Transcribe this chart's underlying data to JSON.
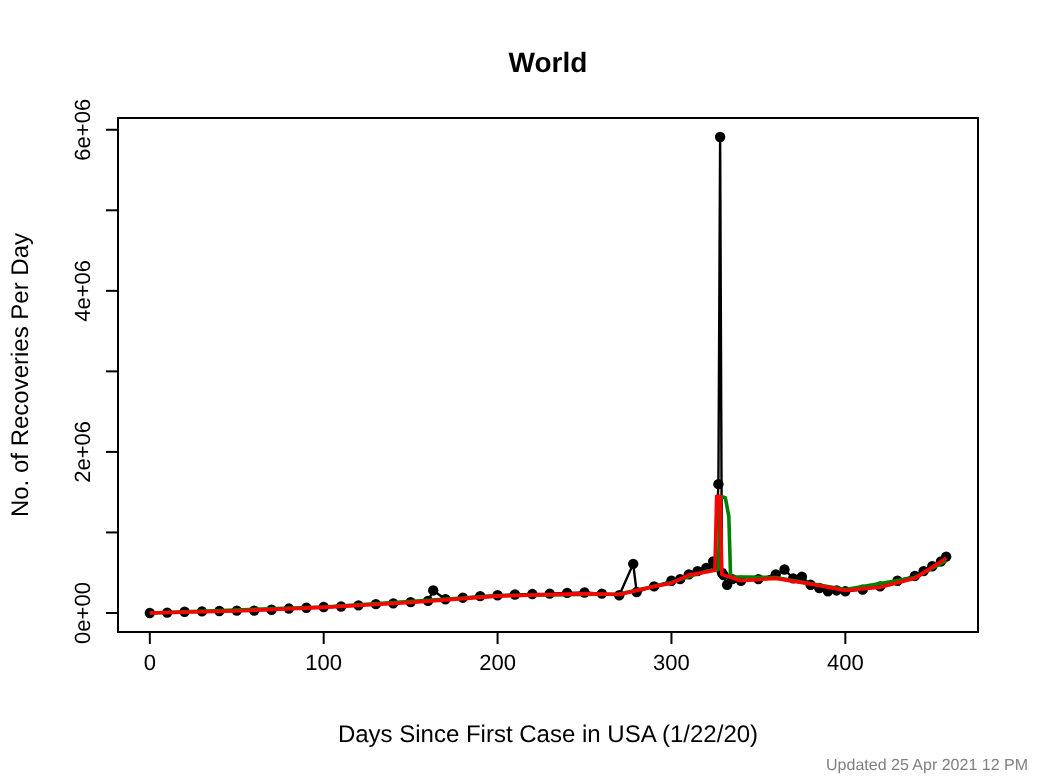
{
  "chart_data": {
    "type": "line",
    "title": "World",
    "xlabel": "Days Since First Case in USA (1/22/20)",
    "ylabel": "No. of Recoveries Per Day",
    "annotations": [
      "Updated  25 Apr 2021 12 PM"
    ],
    "xlim": [
      -18.3,
      476.3
    ],
    "xticks": [
      0,
      100,
      200,
      300,
      400
    ],
    "ylim": [
      -236000,
      6146000
    ],
    "yticks": [
      {
        "value": 0,
        "label": "0e+00"
      },
      {
        "value": 1000000,
        "label": null
      },
      {
        "value": 2000000,
        "label": "2e+06"
      },
      {
        "value": 3000000,
        "label": null
      },
      {
        "value": 4000000,
        "label": "4e+06"
      },
      {
        "value": 5000000,
        "label": null
      },
      {
        "value": 6000000,
        "label": "6e+06"
      }
    ],
    "series": [
      {
        "marker": "circle",
        "color": "#000000",
        "x": [
          0,
          10,
          20,
          30,
          40,
          50,
          60,
          70,
          80,
          90,
          100,
          110,
          120,
          130,
          140,
          150,
          160,
          163,
          170,
          180,
          190,
          200,
          210,
          220,
          230,
          240,
          250,
          260,
          270,
          278,
          280,
          290,
          300,
          305,
          310,
          315,
          320,
          324,
          325,
          327,
          328,
          329,
          330,
          332,
          335,
          340,
          350,
          360,
          365,
          370,
          375,
          380,
          385,
          390,
          395,
          400,
          410,
          420,
          430,
          440,
          445,
          450,
          455,
          458
        ],
        "values": [
          0,
          5000,
          15000,
          20000,
          25000,
          30000,
          30000,
          40000,
          55000,
          65000,
          75000,
          80000,
          95000,
          110000,
          120000,
          135000,
          150000,
          280000,
          170000,
          190000,
          210000,
          220000,
          230000,
          235000,
          240000,
          250000,
          255000,
          240000,
          220000,
          610000,
          260000,
          330000,
          400000,
          420000,
          480000,
          520000,
          560000,
          640000,
          600000,
          1600000,
          5910000,
          500000,
          470000,
          350000,
          420000,
          400000,
          420000,
          480000,
          540000,
          430000,
          450000,
          350000,
          310000,
          270000,
          280000,
          270000,
          290000,
          330000,
          400000,
          460000,
          520000,
          580000,
          640000,
          700000
        ]
      },
      {
        "marker": "none",
        "color": "#008000",
        "x": [
          0,
          100,
          200,
          270,
          300,
          320,
          327,
          328,
          331,
          333,
          334,
          360,
          400,
          440,
          458
        ],
        "values": [
          0,
          75000,
          215000,
          235000,
          380000,
          520000,
          540000,
          1450000,
          1430000,
          1200000,
          450000,
          440000,
          290000,
          440000,
          650000
        ]
      },
      {
        "marker": "none",
        "color": "#ff0000",
        "x": [
          0,
          50,
          100,
          150,
          200,
          250,
          270,
          290,
          300,
          310,
          320,
          325,
          326,
          328,
          329,
          340,
          360,
          380,
          400,
          420,
          440,
          458
        ],
        "values": [
          0,
          25000,
          70000,
          130000,
          210000,
          240000,
          230000,
          330000,
          370000,
          470000,
          510000,
          530000,
          1450000,
          1450000,
          480000,
          400000,
          430000,
          360000,
          280000,
          320000,
          430000,
          680000
        ]
      }
    ]
  }
}
